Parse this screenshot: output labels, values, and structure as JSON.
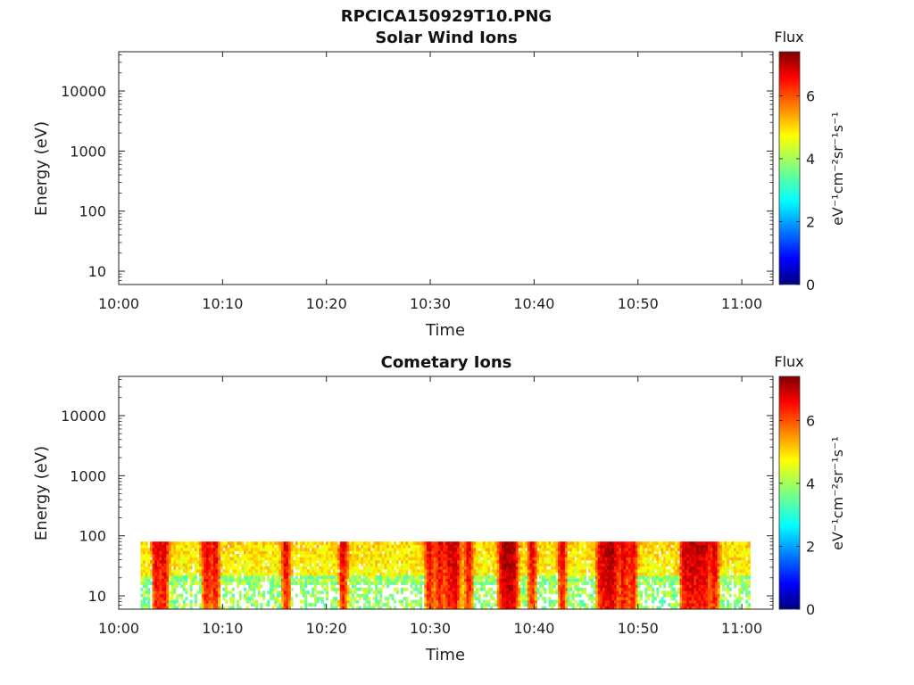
{
  "figure": {
    "title": "RPCICA150929T10.PNG"
  },
  "chart_data": [
    {
      "type": "heatmap",
      "title": "Solar Wind Ions",
      "xlabel": "Time",
      "ylabel": "Energy (eV)",
      "x_ticks": [
        "10:00",
        "10:10",
        "10:20",
        "10:30",
        "10:40",
        "10:50",
        "11:00"
      ],
      "xlim_minutes": [
        0,
        63
      ],
      "y_ticks": [
        10,
        100,
        1000,
        10000
      ],
      "ylim": [
        6,
        45000
      ],
      "y_scale": "log",
      "colorbar": {
        "label": "Flux",
        "units": "eV⁻¹cm⁻²sr⁻¹s⁻¹",
        "ticks": [
          0,
          2,
          4,
          6
        ],
        "range": [
          0,
          7.4
        ],
        "colormap": "jet"
      },
      "data_present": false
    },
    {
      "type": "heatmap",
      "title": "Cometary Ions",
      "xlabel": "Time",
      "ylabel": "Energy (eV)",
      "x_ticks": [
        "10:00",
        "10:10",
        "10:20",
        "10:30",
        "10:40",
        "10:50",
        "11:00"
      ],
      "xlim_minutes": [
        0,
        63
      ],
      "y_ticks": [
        10,
        100,
        1000,
        10000
      ],
      "ylim": [
        6,
        45000
      ],
      "y_scale": "log",
      "colorbar": {
        "label": "Flux",
        "units": "eV⁻¹cm⁻²sr⁻¹s⁻¹",
        "ticks": [
          0,
          2,
          4,
          6
        ],
        "range": [
          0,
          7.4
        ],
        "colormap": "jet"
      },
      "data_present": true,
      "data_time_range_minutes": [
        2.1,
        60.8
      ],
      "data_energy_range": [
        6,
        80
      ],
      "intense_times_minutes": [
        3.5,
        4.3,
        8.3,
        9.2,
        16.0,
        21.5,
        29.8,
        30.8,
        31.7,
        32.4,
        33.6,
        36.8,
        37.4,
        38.0,
        39.7,
        42.6,
        46.3,
        47.0,
        47.6,
        48.5,
        49.4,
        54.3,
        55.0,
        55.7,
        56.4,
        57.3
      ]
    }
  ]
}
